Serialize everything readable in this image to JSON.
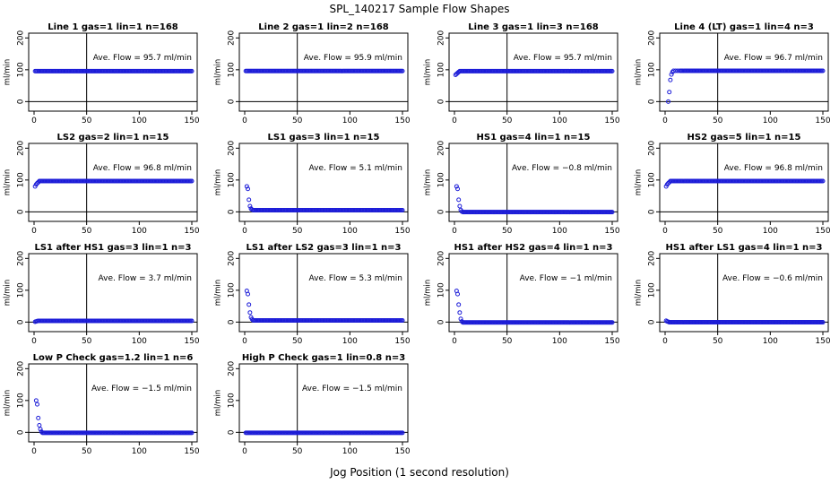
{
  "title": "SPL_140217  Sample Flow Shapes",
  "xlabel": "Jog Position (1 second resolution)",
  "chart_data": [
    {
      "type": "scatter",
      "title": "Line 1 gas=1 lin=1 n=168",
      "ylabel": "ml/min",
      "xlim": [
        0,
        150
      ],
      "ylim": [
        -30,
        215
      ],
      "xticks": [
        0,
        50,
        100,
        150
      ],
      "yticks": [
        0,
        100,
        200
      ],
      "vline": 50,
      "annotation": "Ave. Flow =  95.7  ml/min",
      "shape": {
        "first": [],
        "start": 1,
        "plateau": 95.7
      }
    },
    {
      "type": "scatter",
      "title": "Line 2 gas=1 lin=2 n=168",
      "ylabel": "ml/min",
      "xlim": [
        0,
        150
      ],
      "ylim": [
        -30,
        215
      ],
      "xticks": [
        0,
        50,
        100,
        150
      ],
      "yticks": [
        0,
        100,
        200
      ],
      "vline": 50,
      "annotation": "Ave. Flow =  95.9  ml/min",
      "shape": {
        "first": [],
        "start": 1,
        "plateau": 95.9
      }
    },
    {
      "type": "scatter",
      "title": "Line 3 gas=1 lin=3 n=168",
      "ylabel": "ml/min",
      "xlim": [
        0,
        150
      ],
      "ylim": [
        -30,
        215
      ],
      "xticks": [
        0,
        50,
        100,
        150
      ],
      "yticks": [
        0,
        100,
        200
      ],
      "vline": 50,
      "annotation": "Ave. Flow =  95.7  ml/min",
      "shape": {
        "first": [
          84,
          87,
          90,
          93
        ],
        "start": 1,
        "plateau": 95.7
      }
    },
    {
      "type": "scatter",
      "title": "Line 4 (LT) gas=1 lin=4 n=3",
      "ylabel": "ml/min",
      "xlim": [
        0,
        150
      ],
      "ylim": [
        -30,
        215
      ],
      "xticks": [
        0,
        50,
        100,
        150
      ],
      "yticks": [
        0,
        100,
        200
      ],
      "vline": 50,
      "annotation": "Ave. Flow =  96.7  ml/min",
      "shape": {
        "first": [
          0,
          30,
          68,
          85,
          93
        ],
        "start": 3,
        "plateau": 96.7,
        "sparse": true
      }
    },
    {
      "type": "scatter",
      "title": "LS2 gas=2 lin=1 n=15",
      "ylabel": "ml/min",
      "xlim": [
        0,
        150
      ],
      "ylim": [
        -30,
        215
      ],
      "xticks": [
        0,
        50,
        100,
        150
      ],
      "yticks": [
        0,
        100,
        200
      ],
      "vline": 50,
      "annotation": "Ave. Flow =  96.8  ml/min",
      "shape": {
        "first": [
          80,
          86,
          90,
          93
        ],
        "start": 1,
        "plateau": 96.8
      }
    },
    {
      "type": "scatter",
      "title": "LS1 gas=3 lin=1 n=15",
      "ylabel": "ml/min",
      "xlim": [
        0,
        150
      ],
      "ylim": [
        -30,
        215
      ],
      "xticks": [
        0,
        50,
        100,
        150
      ],
      "yticks": [
        0,
        100,
        200
      ],
      "vline": 50,
      "annotation": "Ave. Flow =  5.1  ml/min",
      "shape": {
        "first": [
          80,
          72,
          38,
          18,
          10,
          7
        ],
        "start": 2,
        "plateau": 5.1
      }
    },
    {
      "type": "scatter",
      "title": "HS1 gas=4 lin=1 n=15",
      "ylabel": "ml/min",
      "xlim": [
        0,
        150
      ],
      "ylim": [
        -30,
        215
      ],
      "xticks": [
        0,
        50,
        100,
        150
      ],
      "yticks": [
        0,
        100,
        200
      ],
      "vline": 50,
      "annotation": "Ave. Flow =  −0.8  ml/min",
      "shape": {
        "first": [
          80,
          72,
          38,
          18,
          6,
          1
        ],
        "start": 2,
        "plateau": -0.8
      }
    },
    {
      "type": "scatter",
      "title": "HS2 gas=5 lin=1 n=15",
      "ylabel": "ml/min",
      "xlim": [
        0,
        150
      ],
      "ylim": [
        -30,
        215
      ],
      "xticks": [
        0,
        50,
        100,
        150
      ],
      "yticks": [
        0,
        100,
        200
      ],
      "vline": 50,
      "annotation": "Ave. Flow =  96.8  ml/min",
      "shape": {
        "first": [
          80,
          86,
          90,
          93
        ],
        "start": 1,
        "plateau": 96.8
      }
    },
    {
      "type": "scatter",
      "title": "LS1 after HS1 gas=3 lin=1 n=3",
      "ylabel": "ml/min",
      "xlim": [
        0,
        150
      ],
      "ylim": [
        -30,
        215
      ],
      "xticks": [
        0,
        50,
        100,
        150
      ],
      "yticks": [
        0,
        100,
        200
      ],
      "vline": 50,
      "annotation": "Ave. Flow =  3.7  ml/min",
      "shape": {
        "first": [
          1,
          2,
          3
        ],
        "start": 1,
        "plateau": 3.7
      }
    },
    {
      "type": "scatter",
      "title": "LS1 after LS2 gas=3 lin=1 n=3",
      "ylabel": "ml/min",
      "xlim": [
        0,
        150
      ],
      "ylim": [
        -30,
        215
      ],
      "xticks": [
        0,
        50,
        100,
        150
      ],
      "yticks": [
        0,
        100,
        200
      ],
      "vline": 50,
      "annotation": "Ave. Flow =  5.3  ml/min",
      "shape": {
        "first": [
          98,
          88,
          55,
          30,
          15,
          9
        ],
        "start": 2,
        "plateau": 5.3
      }
    },
    {
      "type": "scatter",
      "title": "HS1 after HS2 gas=4 lin=1 n=3",
      "ylabel": "ml/min",
      "xlim": [
        0,
        150
      ],
      "ylim": [
        -30,
        215
      ],
      "xticks": [
        0,
        50,
        100,
        150
      ],
      "yticks": [
        0,
        100,
        200
      ],
      "vline": 50,
      "annotation": "Ave. Flow =  −1  ml/min",
      "shape": {
        "first": [
          98,
          88,
          55,
          30,
          10,
          2
        ],
        "start": 2,
        "plateau": -1
      }
    },
    {
      "type": "scatter",
      "title": "HS1 after LS1 gas=4 lin=1 n=3",
      "ylabel": "ml/min",
      "xlim": [
        0,
        150
      ],
      "ylim": [
        -30,
        215
      ],
      "xticks": [
        0,
        50,
        100,
        150
      ],
      "yticks": [
        0,
        100,
        200
      ],
      "vline": 50,
      "annotation": "Ave. Flow =  −0.6  ml/min",
      "shape": {
        "first": [
          4,
          2,
          1
        ],
        "start": 1,
        "plateau": -0.6
      }
    },
    {
      "type": "scatter",
      "title": "Low P Check gas=1.2 lin=1 n=6",
      "ylabel": "ml/min",
      "xlim": [
        0,
        150
      ],
      "ylim": [
        -30,
        215
      ],
      "xticks": [
        0,
        50,
        100,
        150
      ],
      "yticks": [
        0,
        100,
        200
      ],
      "vline": 50,
      "annotation": "Ave. Flow =  −1.5  ml/min",
      "shape": {
        "first": [
          100,
          88,
          45,
          22,
          10,
          2
        ],
        "start": 2,
        "plateau": -1.5
      }
    },
    {
      "type": "scatter",
      "title": "High P Check gas=1 lin=0.8 n=3",
      "ylabel": "ml/min",
      "xlim": [
        0,
        150
      ],
      "ylim": [
        -30,
        215
      ],
      "xticks": [
        0,
        50,
        100,
        150
      ],
      "yticks": [
        0,
        100,
        200
      ],
      "vline": 50,
      "annotation": "Ave. Flow =  −1.5  ml/min",
      "shape": {
        "first": [],
        "start": 1,
        "plateau": -1.5
      }
    }
  ]
}
